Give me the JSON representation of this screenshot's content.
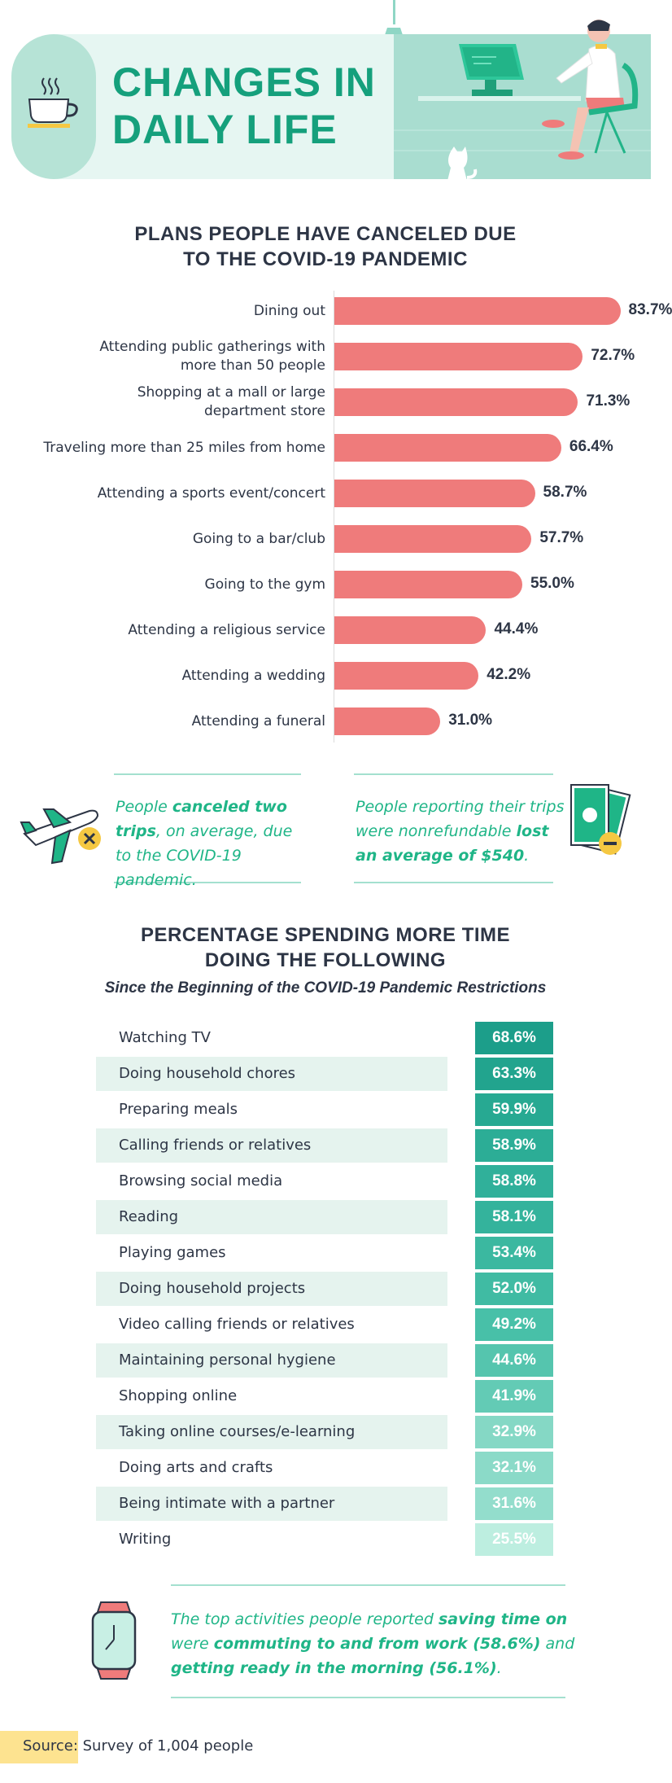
{
  "header": {
    "title_line1": "CHANGES IN",
    "title_line2": "DAILY LIFE"
  },
  "colors": {
    "accent_green": "#15a07c",
    "bar_coral": "#ef7b7b",
    "teal_dark": "#1c9e8a",
    "teal_light": "#bdeee0"
  },
  "canceled_section": {
    "title_line1": "PLANS PEOPLE HAVE CANCELED DUE",
    "title_line2": "TO THE COVID-19 PANDEMIC"
  },
  "chart_data": {
    "type": "bar",
    "orientation": "horizontal",
    "categories": [
      [
        "Dining out"
      ],
      [
        "Attending public gatherings with",
        "more than 50 people"
      ],
      [
        "Shopping at a mall or large",
        "department store"
      ],
      [
        "Traveling more than 25 miles from home"
      ],
      [
        "Attending a sports event/concert"
      ],
      [
        "Going to a bar/club"
      ],
      [
        "Going to the gym"
      ],
      [
        "Attending a religious service"
      ],
      [
        "Attending a wedding"
      ],
      [
        "Attending a funeral"
      ]
    ],
    "values": [
      83.7,
      72.7,
      71.3,
      66.4,
      58.7,
      57.7,
      55.0,
      44.4,
      42.2,
      31.0
    ],
    "value_labels": [
      "83.7%",
      "72.7%",
      "71.3%",
      "66.4%",
      "58.7%",
      "57.7%",
      "55.0%",
      "44.4%",
      "42.2%",
      "31.0%"
    ],
    "xlim": [
      0,
      100
    ],
    "color": "#ef7b7b"
  },
  "callouts": {
    "left": {
      "pre": "People ",
      "bold": "canceled two trips",
      "post": ", on average, due to the COVID-19 pandemic."
    },
    "right": {
      "pre": "People reporting their trips were nonrefundable ",
      "bold": "lost an average of $540",
      "post": "."
    }
  },
  "spending_section": {
    "title_line1": "PERCENTAGE SPENDING MORE TIME",
    "title_line2": "DOING THE FOLLOWING",
    "subtitle": "Since the Beginning of the COVID-19 Pandemic Restrictions",
    "rows": [
      {
        "label": "Watching TV",
        "value": "68.6%"
      },
      {
        "label": "Doing household chores",
        "value": "63.3%"
      },
      {
        "label": "Preparing meals",
        "value": "59.9%"
      },
      {
        "label": "Calling friends or relatives",
        "value": "58.9%"
      },
      {
        "label": "Browsing social media",
        "value": "58.8%"
      },
      {
        "label": "Reading",
        "value": "58.1%"
      },
      {
        "label": "Playing games",
        "value": "53.4%"
      },
      {
        "label": "Doing household projects",
        "value": "52.0%"
      },
      {
        "label": "Video calling friends or relatives",
        "value": "49.2%"
      },
      {
        "label": "Maintaining personal hygiene",
        "value": "44.6%"
      },
      {
        "label": "Shopping online",
        "value": "41.9%"
      },
      {
        "label": "Taking online courses/e-learning",
        "value": "32.9%"
      },
      {
        "label": "Doing arts and crafts",
        "value": "32.1%"
      },
      {
        "label": "Being intimate with a partner",
        "value": "31.6%"
      },
      {
        "label": "Writing",
        "value": "25.5%"
      }
    ],
    "cell_colors": [
      "#1c9e8a",
      "#22a48e",
      "#27a992",
      "#2cad96",
      "#30b09a",
      "#34b39c",
      "#3bb8a0",
      "#40bba3",
      "#48c0a8",
      "#55c5ae",
      "#63cbb5",
      "#85d8c5",
      "#8bdac8",
      "#93ddcc",
      "#bdeee0"
    ]
  },
  "bottom_note": {
    "t1": "The top activities people reported ",
    "b1": "saving time on",
    "t2": " were ",
    "b2": "commuting to and from work (58.6%)",
    "t3": " and ",
    "b3": "getting ready in the morning (56.1%)",
    "t4": "."
  },
  "source": {
    "label": "Source:",
    "text": "Survey of 1,004 people"
  },
  "icons": [
    "coffee-mug-icon",
    "desk-computer-illustration",
    "cat-icon",
    "airplane-cancel-icon",
    "money-minus-icon",
    "smartwatch-icon"
  ]
}
